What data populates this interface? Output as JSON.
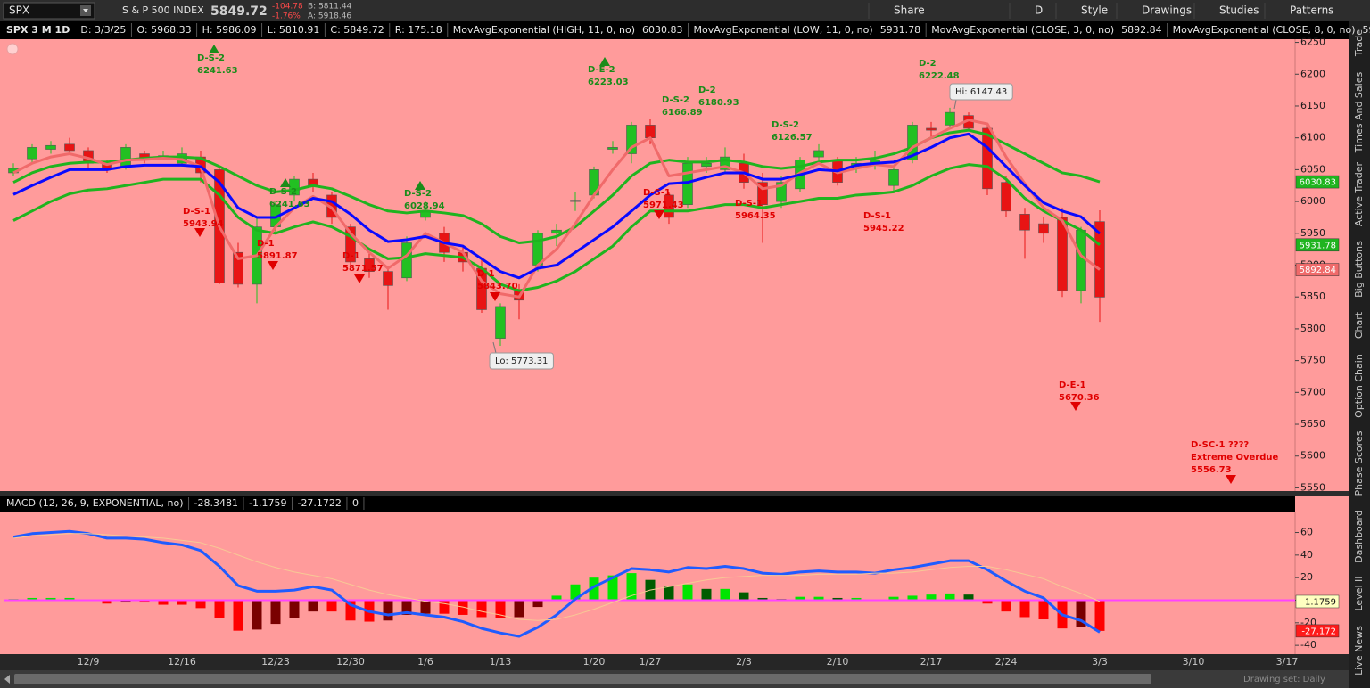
{
  "toolbar": {
    "symbol": "SPX",
    "description": "S & P 500 INDEX",
    "last": "5849.72",
    "change": "-104.78",
    "change_pct": "-1.76%",
    "bid": "B: 5811.44",
    "ask": "A: 5918.46",
    "buttons": [
      "Share",
      "D",
      "Style",
      "Drawings",
      "Studies",
      "Patterns"
    ]
  },
  "info_bar": {
    "fields": [
      "D: 3/3/25",
      "O: 5968.33",
      "H: 5986.09",
      "L: 5810.91",
      "C: 5849.72",
      "R: 175.18"
    ]
  },
  "side_tabs": [
    "Trade",
    "Times And Sales",
    "Active Trader",
    "Big Buttons",
    "Chart",
    "Option Chain",
    "Phase Scores",
    "Dashboard",
    "Level II",
    "Live News"
  ],
  "status": "Drawing set: Daily",
  "chart_data": [
    {
      "type": "candlestick",
      "title": "SPX 3 M 1D",
      "categories": [
        null,
        null,
        null,
        null,
        "12/9",
        null,
        null,
        null,
        null,
        "12/16",
        null,
        null,
        null,
        null,
        "12/23",
        null,
        null,
        null,
        "12/30",
        null,
        null,
        null,
        "1/6",
        null,
        null,
        null,
        "1/13",
        null,
        null,
        null,
        null,
        "1/20",
        null,
        null,
        "1/27",
        null,
        null,
        null,
        null,
        "2/3",
        null,
        null,
        null,
        null,
        "2/10",
        null,
        null,
        null,
        null,
        "2/17",
        null,
        null,
        null,
        "2/24",
        null,
        null,
        null,
        null,
        "3/3",
        null,
        null,
        null,
        null,
        "3/10",
        null,
        null,
        null,
        null,
        "3/17"
      ],
      "open": [
        6045,
        6067,
        6082,
        6090,
        6080,
        6060,
        6055,
        6075,
        6070,
        6060,
        6070,
        6050,
        5920,
        5870,
        5960,
        6010,
        6035,
        6010,
        5960,
        5910,
        5890,
        5880,
        5975,
        5950,
        5920,
        5895,
        5785,
        5860,
        5900,
        5950,
        6000,
        6010,
        6082,
        6075,
        6120,
        6010,
        5995,
        6055,
        6050,
        6060,
        6030,
        6000,
        6020,
        6070,
        6065,
        6055,
        6060,
        6025,
        6065,
        6115,
        6120,
        6135,
        6115,
        6030,
        5980,
        5965,
        5975,
        5860,
        5968.33,
        null,
        null,
        null,
        null,
        null,
        null,
        null,
        null,
        null,
        null
      ],
      "high": [
        6060,
        6090,
        6095,
        6100,
        6085,
        6065,
        6090,
        6080,
        6080,
        6085,
        6080,
        6055,
        5935,
        5975,
        6000,
        6040,
        6045,
        6015,
        5965,
        5920,
        5895,
        5945,
        6000,
        5960,
        5930,
        5910,
        5840,
        5870,
        5955,
        5965,
        6015,
        6055,
        6095,
        6125,
        6130,
        6015,
        6070,
        6070,
        6085,
        6075,
        6045,
        6040,
        6070,
        6090,
        6070,
        6070,
        6080,
        6055,
        6125,
        6125,
        6147.43,
        6140,
        6120,
        6040,
        5990,
        5975,
        5990,
        5960,
        5986.09,
        null,
        null,
        null,
        null,
        null,
        null,
        null,
        null,
        null,
        null
      ],
      "low": [
        6040,
        6060,
        6075,
        6075,
        6050,
        6045,
        6050,
        6060,
        6065,
        6055,
        6030,
        5870,
        5865,
        5840,
        5950,
        6000,
        6015,
        5965,
        5895,
        5880,
        5830,
        5875,
        5970,
        5905,
        5890,
        5825,
        5773.31,
        5815,
        5890,
        5930,
        5985,
        6005,
        6075,
        6060,
        6090,
        5965,
        5990,
        6045,
        6045,
        6020,
        5935,
        5990,
        6015,
        6060,
        6025,
        6045,
        6050,
        6015,
        6060,
        6100,
        6115,
        6110,
        6010,
        5975,
        5910,
        5935,
        5850,
        5840,
        5810.91,
        null,
        null,
        null,
        null,
        null,
        null,
        null,
        null,
        null,
        null
      ],
      "close": [
        6052,
        6085,
        6088,
        6080,
        6060,
        6050,
        6085,
        6068,
        6072,
        6075,
        6045,
        5872,
        5870,
        5960,
        5995,
        6035,
        6025,
        5975,
        5905,
        5890,
        5868,
        5935,
        5985,
        5920,
        5905,
        5830,
        5835,
        5845,
        5950,
        5955,
        6002,
        6050,
        6085,
        6120,
        6100,
        5975,
        6060,
        6060,
        6070,
        6030,
        5995,
        6030,
        6065,
        6080,
        6030,
        6060,
        6065,
        6050,
        6120,
        6112,
        6140,
        6115,
        6020,
        5985,
        5955,
        5950,
        5860,
        5955,
        5849.72,
        null,
        null,
        null,
        null,
        null,
        null,
        null,
        null,
        null,
        null
      ],
      "up_color": "#22c022",
      "down_color": "#e81414",
      "series": [
        {
          "name": "MovAvgExponential (HIGH, 11, 0, no)",
          "color": "#1fb41f",
          "show_last": true,
          "values": [
            6030,
            6045,
            6055,
            6060,
            6062,
            6062,
            6065,
            6068,
            6070,
            6070,
            6068,
            6055,
            6040,
            6025,
            6015,
            6018,
            6025,
            6020,
            6008,
            5995,
            5985,
            5982,
            5985,
            5982,
            5978,
            5965,
            5945,
            5935,
            5938,
            5945,
            5960,
            5985,
            6010,
            6040,
            6060,
            6065,
            6062,
            6062,
            6065,
            6062,
            6055,
            6052,
            6055,
            6062,
            6065,
            6065,
            6068,
            6075,
            6085,
            6100,
            6108,
            6112,
            6105,
            6090,
            6075,
            6060,
            6045,
            6040,
            6030.83,
            null,
            null,
            null,
            null,
            null,
            null,
            null,
            null,
            null,
            null
          ]
        },
        {
          "name": "MovAvgExponential (LOW, 11, 0, no)",
          "color": "#1fb41f",
          "show_last": true,
          "values": [
            5970,
            5985,
            6000,
            6012,
            6018,
            6020,
            6025,
            6030,
            6035,
            6035,
            6035,
            6010,
            5975,
            5955,
            5950,
            5960,
            5968,
            5960,
            5945,
            5925,
            5910,
            5912,
            5918,
            5915,
            5912,
            5895,
            5870,
            5860,
            5865,
            5875,
            5890,
            5910,
            5930,
            5960,
            5985,
            5985,
            5985,
            5990,
            5995,
            5995,
            5990,
            5995,
            6000,
            6005,
            6005,
            6010,
            6012,
            6015,
            6025,
            6040,
            6052,
            6058,
            6055,
            6035,
            6005,
            5985,
            5970,
            5955,
            5931.78,
            null,
            null,
            null,
            null,
            null,
            null,
            null,
            null,
            null,
            null
          ]
        },
        {
          "name": "MovAvgExponential (CLOSE, 3, 0, no)",
          "color": "#f06a6a",
          "show_last": true,
          "values": [
            6045,
            6060,
            6070,
            6075,
            6068,
            6058,
            6065,
            6066,
            6068,
            6066,
            6055,
            5960,
            5910,
            5915,
            5960,
            5990,
            6008,
            5990,
            5950,
            5920,
            5895,
            5915,
            5950,
            5935,
            5920,
            5875,
            5855,
            5850,
            5900,
            5925,
            5965,
            6010,
            6050,
            6085,
            6100,
            6040,
            6045,
            6050,
            6055,
            6045,
            6020,
            6025,
            6045,
            6060,
            6045,
            6052,
            6058,
            6055,
            6085,
            6100,
            6115,
            6128,
            6122,
            6070,
            6028,
            5990,
            5970,
            5915,
            5892.84,
            null,
            null,
            null,
            null,
            null,
            null,
            null,
            null,
            null,
            null
          ]
        },
        {
          "name": "MovAvgExponential (CLOSE, 8, 0, no)",
          "color": "#0a0aff",
          "show_last": false,
          "values": [
            6011,
            6025,
            6038,
            6050,
            6050,
            6050,
            6055,
            6057,
            6057,
            6057,
            6055,
            6030,
            5990,
            5975,
            5975,
            5990,
            6005,
            6000,
            5980,
            5955,
            5937,
            5940,
            5945,
            5935,
            5930,
            5910,
            5890,
            5880,
            5895,
            5900,
            5920,
            5940,
            5960,
            5985,
            6010,
            6028,
            6030,
            6038,
            6045,
            6045,
            6035,
            6035,
            6042,
            6050,
            6048,
            6057,
            6060,
            6062,
            6072,
            6085,
            6100,
            6106,
            6085,
            6055,
            6025,
            5998,
            5985,
            5976,
            5949.56,
            null,
            null,
            null,
            null,
            null,
            null,
            null,
            null,
            null,
            null
          ]
        }
      ],
      "ylim": [
        5545,
        6255
      ],
      "yticks": [
        5550,
        5600,
        5650,
        5700,
        5750,
        5800,
        5850,
        5900,
        5950,
        6000,
        6050,
        6100,
        6150,
        6200,
        6250
      ],
      "grid": false,
      "annotations": [
        {
          "lines": [
            "D-S-2"
          ],
          "value": 6241.63,
          "color": "#1a8c1a",
          "arrow": "up"
        },
        {
          "lines": [
            "D-S-1"
          ],
          "value": 5943.94,
          "color": "#e00000",
          "arrow": "down"
        },
        {
          "lines": [
            "D-S-2"
          ],
          "value": 6241.63,
          "color": "#1a8c1a",
          "arrow": "up"
        },
        {
          "lines": [
            "D-1"
          ],
          "value": 5891.87,
          "color": "#e00000",
          "arrow": "down"
        },
        {
          "lines": [
            "D-1"
          ],
          "value": 5871.57,
          "color": "#e00000",
          "arrow": "down"
        },
        {
          "lines": [
            "D-S-2"
          ],
          "value": 6028.94,
          "color": "#1a8c1a",
          "arrow": "up"
        },
        {
          "lines": [
            "D-1"
          ],
          "value": 5843.7,
          "value_label": "5843.70",
          "color": "#e00000",
          "arrow": "down"
        },
        {
          "lines": [
            "D-E-2"
          ],
          "value": 6223.03,
          "color": "#1a8c1a",
          "arrow": "up"
        },
        {
          "lines": [
            "D-S-2"
          ],
          "value": 6166.89,
          "color": "#1a8c1a"
        },
        {
          "lines": [
            "D-2"
          ],
          "value": 6180.93,
          "color": "#1a8c1a"
        },
        {
          "lines": [
            "D-S-1"
          ],
          "value": 5971.43,
          "color": "#e00000",
          "arrow": "down"
        },
        {
          "lines": [
            "D-S-1"
          ],
          "value": 5964.35,
          "color": "#e00000"
        },
        {
          "lines": [
            "D-S-2"
          ],
          "value": 6126.57,
          "color": "#1a8c1a"
        },
        {
          "lines": [
            "D-S-1"
          ],
          "value": 5945.22,
          "color": "#e00000"
        },
        {
          "lines": [
            "D-2"
          ],
          "value": 6222.48,
          "color": "#1a8c1a"
        },
        {
          "lines": [
            "D-E-1"
          ],
          "value": 5670.36,
          "color": "#e00000",
          "arrow": "down"
        },
        {
          "lines": [
            "D-SC-1 ????",
            "Extreme Overdue"
          ],
          "value": 5556.73,
          "color": "#e00000",
          "arrow": "down"
        }
      ],
      "callouts": [
        {
          "text": "Hi: 6147.43"
        },
        {
          "text": "Lo: 5773.31"
        }
      ]
    },
    {
      "type": "macd",
      "title": "MACD (12, 26, 9, EXPONENTIAL, no)",
      "series": [
        {
          "name": "Value",
          "style": "line",
          "color": "#1f5cff",
          "show_last": false,
          "values": [
            56,
            59,
            60,
            61,
            59,
            55,
            55,
            54,
            51,
            49,
            44,
            30,
            13,
            8,
            8,
            9,
            12,
            9,
            -4,
            -10,
            -13,
            -11,
            -13,
            -15,
            -19,
            -25,
            -29,
            -32,
            -24,
            -13,
            1,
            12,
            20,
            28,
            27,
            25,
            29,
            28,
            30,
            28,
            24,
            23,
            25,
            26,
            25,
            25,
            24,
            27,
            29,
            32,
            35,
            35,
            27,
            17,
            8,
            2,
            -13,
            -18,
            -28.3481,
            null,
            null,
            null,
            null,
            null,
            null,
            null,
            null,
            null,
            null
          ]
        },
        {
          "name": "Avg",
          "style": "line",
          "color": "#f7c995",
          "show_last": true,
          "values": [
            55,
            57,
            58,
            59,
            59,
            58,
            57,
            56,
            55,
            53,
            51,
            46,
            40,
            34,
            29,
            25,
            22,
            19,
            14,
            9,
            5,
            2,
            -1,
            -3,
            -6,
            -10,
            -13,
            -17,
            -18,
            -17,
            -13,
            -8,
            -2,
            4,
            9,
            12,
            15,
            18,
            20,
            21,
            22,
            22,
            22,
            23,
            23,
            23,
            24,
            24,
            25,
            27,
            29,
            30,
            30,
            27,
            23,
            19,
            12,
            6,
            -1.1759,
            null,
            null,
            null,
            null,
            null,
            null,
            null,
            null,
            null,
            null
          ]
        },
        {
          "name": "Diff",
          "style": "histogram",
          "color": "#ff1a1a",
          "show_last": true,
          "last_value_label": "-27.172",
          "colors": {
            "up": "#00e600",
            "up_weak": "#005c00",
            "down": "#ff0000",
            "down_weak": "#7a0000"
          },
          "values": [
            1,
            2,
            2,
            2,
            0,
            -3,
            -2,
            -2,
            -4,
            -4,
            -7,
            -16,
            -27,
            -26,
            -21,
            -16,
            -10,
            -10,
            -18,
            -19,
            -18,
            -13,
            -12,
            -12,
            -13,
            -15,
            -16,
            -15,
            -6,
            4,
            14,
            20,
            22,
            24,
            18,
            13,
            14,
            10,
            10,
            7,
            2,
            1,
            3,
            3,
            2,
            2,
            0,
            3,
            4,
            5,
            6,
            5,
            -3,
            -10,
            -15,
            -17,
            -25,
            -24,
            -27.1722,
            null,
            null,
            null,
            null,
            null,
            null,
            null,
            null,
            null,
            null
          ]
        }
      ],
      "zero_line": {
        "value": 0,
        "color": "#ff44ff"
      },
      "ylim": [
        -47,
        77
      ],
      "yticks": [
        60,
        40,
        20,
        0,
        -20,
        -40
      ],
      "grid": false
    }
  ]
}
